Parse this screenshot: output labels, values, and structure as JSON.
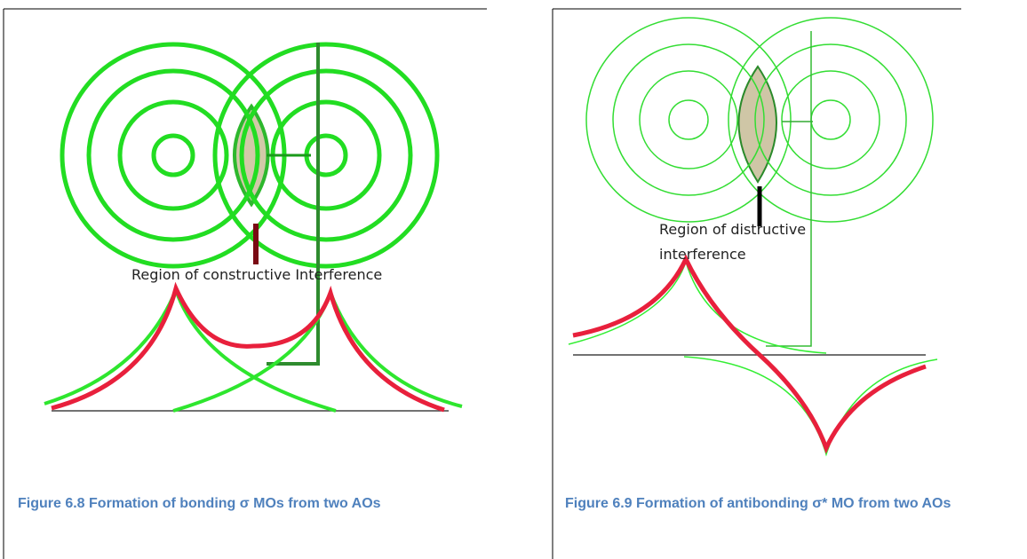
{
  "left": {
    "label": "Region of constructive Interference",
    "caption": "Figure 6.8 Formation of bonding σ MOs from two AOs"
  },
  "right": {
    "label_lines": [
      "Region of distructive",
      "interference"
    ],
    "caption": "Figure 6.9 Formation of antibonding σ* MO from two AOs"
  }
}
